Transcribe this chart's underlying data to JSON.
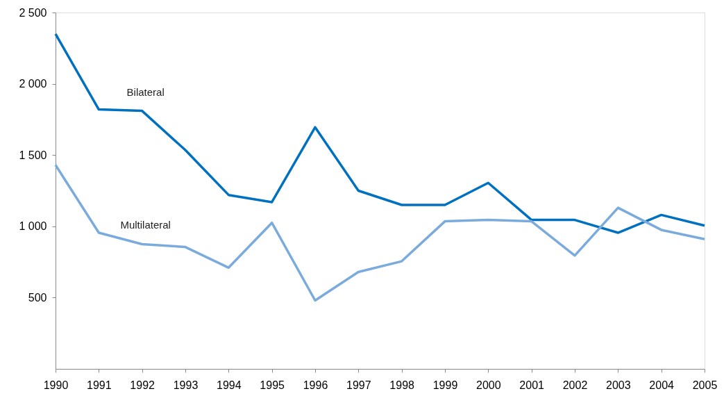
{
  "chart_data": {
    "type": "line",
    "categories": [
      "1990",
      "1991",
      "1992",
      "1993",
      "1994",
      "1995",
      "1996",
      "1997",
      "1998",
      "1999",
      "2000",
      "2001",
      "2002",
      "2003",
      "2004",
      "2005"
    ],
    "series": [
      {
        "name": "Bilateral",
        "color": "#0070c0",
        "values": [
          2350,
          1820,
          1810,
          1535,
          1220,
          1170,
          1695,
          1250,
          1150,
          1150,
          1305,
          1045,
          1045,
          955,
          1080,
          1005
        ]
      },
      {
        "name": "Multilateral",
        "color": "#7aabdc",
        "values": [
          1430,
          955,
          875,
          855,
          710,
          1025,
          480,
          680,
          755,
          1035,
          1045,
          1035,
          795,
          1130,
          975,
          910
        ]
      }
    ],
    "ylim": [
      0,
      2500
    ],
    "yticks": [
      {
        "value": 500,
        "label": "500"
      },
      {
        "value": 1000,
        "label": "1 000"
      },
      {
        "value": 1500,
        "label": "1 500"
      },
      {
        "value": 2000,
        "label": "2 000"
      },
      {
        "value": 2500,
        "label": "2 500"
      }
    ],
    "marker": "none",
    "line_style": "solid"
  }
}
